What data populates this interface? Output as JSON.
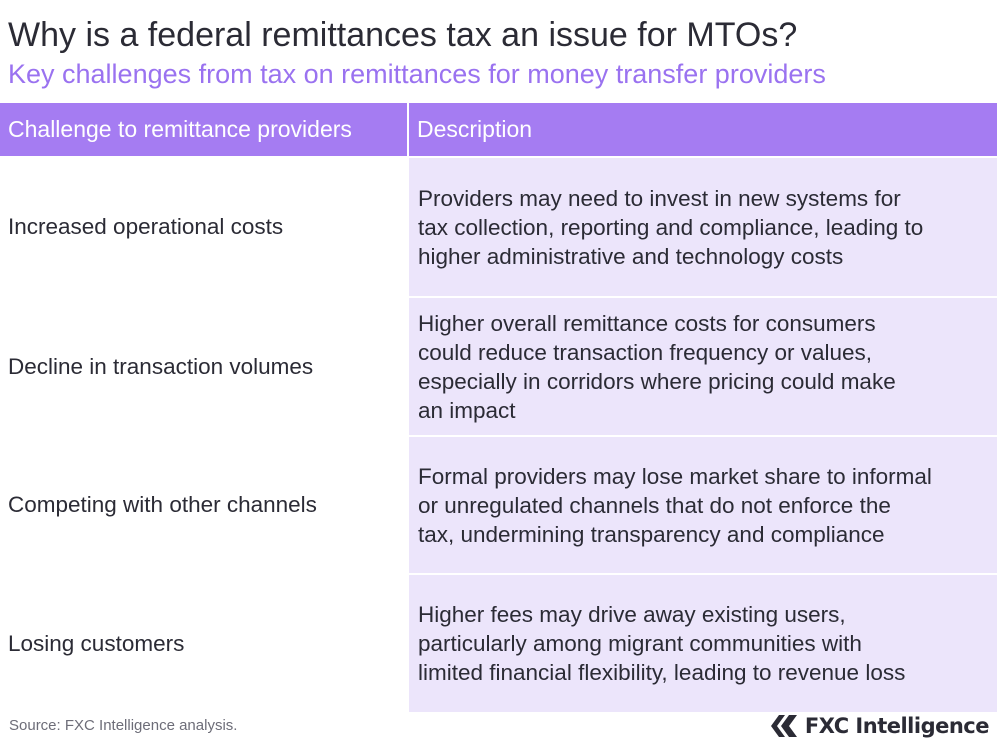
{
  "header": {
    "title": "Why is a federal remittances tax an issue for MTOs?",
    "subtitle": "Key challenges from tax on remittances for money transfer providers"
  },
  "table": {
    "columns": [
      "Challenge to remittance providers",
      "Description"
    ],
    "rows": [
      {
        "challenge": "Increased operational costs",
        "description_lines": [
          "Providers may need to invest in new systems for",
          "tax collection, reporting and compliance, leading to",
          "higher administrative and technology costs"
        ]
      },
      {
        "challenge": "Decline in transaction volumes",
        "description_lines": [
          "Higher overall remittance costs for consumers",
          "could reduce transaction frequency or values,",
          "especially in corridors where pricing could make",
          "an impact"
        ]
      },
      {
        "challenge": "Competing with other channels",
        "description_lines": [
          "Formal providers may lose market share to informal",
          "or unregulated channels that do not enforce the",
          "tax, undermining transparency and compliance"
        ]
      },
      {
        "challenge": "Losing customers",
        "description_lines": [
          "Higher fees may drive away existing users,",
          "particularly among migrant communities with",
          "limited financial flexibility, leading to revenue loss"
        ]
      }
    ]
  },
  "footer": {
    "source": "Source: FXC Intelligence analysis.",
    "logo_text": "FXC Intelligence",
    "logo_icon": "fxc-logo-icon"
  },
  "colors": {
    "accent": "#a57cf2",
    "subtitle": "#9a72f0",
    "row_fill": "#ece5fb",
    "text": "#2b2b35"
  }
}
